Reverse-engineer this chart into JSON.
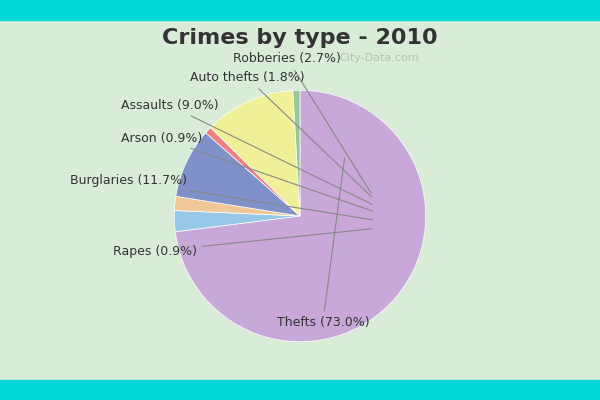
{
  "title": "Crimes by type - 2010",
  "title_fontsize": 16,
  "slices": [
    {
      "label": "Thefts",
      "pct": 73.0,
      "color": "#c8a8d8"
    },
    {
      "label": "Robberies",
      "pct": 2.7,
      "color": "#98c8e8"
    },
    {
      "label": "Auto thefts",
      "pct": 1.8,
      "color": "#f0c898"
    },
    {
      "label": "Assaults",
      "pct": 9.0,
      "color": "#8090c8"
    },
    {
      "label": "Arson",
      "pct": 0.9,
      "color": "#f08080"
    },
    {
      "label": "Burglaries",
      "pct": 11.7,
      "color": "#f0f098"
    },
    {
      "label": "Rapes",
      "pct": 0.9,
      "color": "#98c898"
    }
  ],
  "background_top": "#00d8d8",
  "background_inner": "#d8ecd8",
  "label_fontsize": 9,
  "watermark": "City-Data.com"
}
